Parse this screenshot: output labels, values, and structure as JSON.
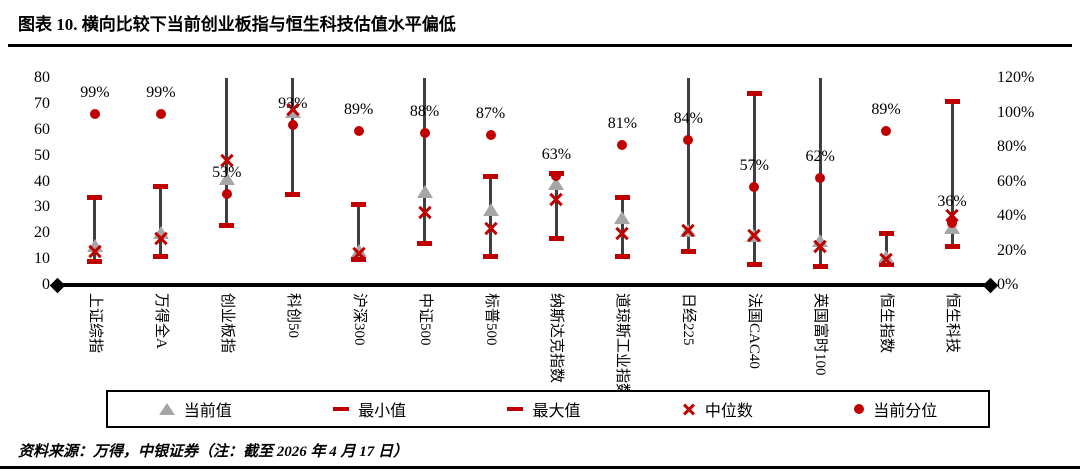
{
  "title": "图表 10. 横向比较下当前创业板指与恒生科技估值水平偏低",
  "source_note": "资料来源：万得，中银证券（注：截至 2026 年 4 月 17 日）",
  "colors": {
    "accent_red": "#c00000",
    "marker_gray": "#a6a6a6",
    "bar_line": "#3f3f3f",
    "axis_black": "#000000"
  },
  "legend": [
    {
      "marker": "triangle",
      "label": "当前值"
    },
    {
      "marker": "dash",
      "label": "最小值"
    },
    {
      "marker": "dash",
      "label": "最大值"
    },
    {
      "marker": "cross",
      "label": "中位数"
    },
    {
      "marker": "dot",
      "label": "当前分位"
    }
  ],
  "chart_data": {
    "type": "range-bar",
    "title": "横向比较下当前创业板指与恒生科技估值水平偏低",
    "categories": [
      "上证综指",
      "万得全A",
      "创业板指",
      "科创50",
      "沪深300",
      "中证500",
      "标普500",
      "纳斯达克指数",
      "道琼斯工业指数",
      "日经225",
      "法国CAC40",
      "英国富时100",
      "恒生指数",
      "恒生科技"
    ],
    "left_axis": {
      "min": 0,
      "max": 80,
      "ticks": [
        "0",
        "10",
        "20",
        "30",
        "40",
        "50",
        "60",
        "70",
        "80"
      ]
    },
    "right_axis": {
      "min": 0,
      "max": 120,
      "unit": "%",
      "ticks": [
        "0%",
        "20%",
        "40%",
        "60%",
        "80%",
        "100%",
        "120%"
      ]
    },
    "series": [
      {
        "name": "当前值",
        "marker": "triangle",
        "axis": "left",
        "values": [
          15,
          20,
          41,
          67,
          13,
          36,
          29,
          39,
          26,
          21,
          19,
          17,
          11,
          22
        ]
      },
      {
        "name": "最小值",
        "marker": "dash",
        "axis": "left",
        "values": [
          9,
          11,
          23,
          35,
          10,
          16,
          11,
          18,
          11,
          13,
          8,
          7,
          8,
          15
        ]
      },
      {
        "name": "最大值",
        "marker": "dash",
        "axis": "left",
        "values": [
          34,
          38,
          84,
          84,
          31,
          84,
          42,
          43,
          34,
          84,
          74,
          84,
          20,
          71
        ]
      },
      {
        "name": "中位数",
        "marker": "cross",
        "axis": "left",
        "values": [
          13,
          18,
          48,
          68,
          12,
          28,
          22,
          33,
          20,
          21,
          19,
          15,
          10,
          27
        ]
      },
      {
        "name": "当前分位",
        "marker": "dot",
        "axis": "right",
        "values": [
          99,
          99,
          53,
          93,
          89,
          88,
          87,
          63,
          81,
          84,
          57,
          62,
          89,
          36
        ]
      }
    ],
    "max_clipped": [
      false,
      false,
      true,
      true,
      false,
      true,
      false,
      false,
      false,
      true,
      false,
      true,
      false,
      false
    ],
    "percent_labels": [
      "99%",
      "99%",
      "53%",
      "93%",
      "89%",
      "88%",
      "87%",
      "63%",
      "81%",
      "84%",
      "57%",
      "62%",
      "89%",
      "36%"
    ],
    "grid": false,
    "legend_position": "bottom"
  }
}
